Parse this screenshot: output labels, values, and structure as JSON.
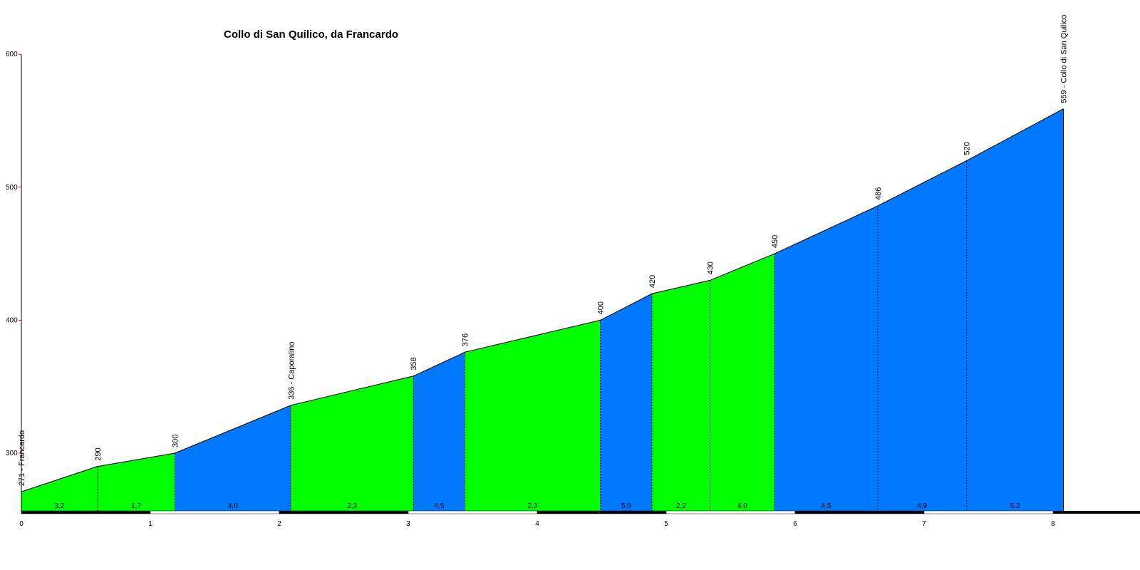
{
  "chart_data": {
    "type": "area",
    "title": "Collo di San Quilico, da Francardo",
    "xlabel": "",
    "ylabel": "",
    "xlim": [
      0,
      8.2
    ],
    "ylim": [
      256,
      600
    ],
    "x_ticks": [
      "0",
      "1",
      "2",
      "3",
      "4",
      "5",
      "6",
      "7",
      "8"
    ],
    "y_ticks": [
      "300",
      "400",
      "500",
      "600"
    ],
    "grid": false,
    "colors": {
      "easy": "#00ff00",
      "hard": "#0078ff",
      "axis": "#000000",
      "y_tick_mark": "#ff0000"
    },
    "points": [
      {
        "x": 0.0,
        "y": 271,
        "label": "271 - Francardo"
      },
      {
        "x": 0.59,
        "y": 290,
        "label": "290"
      },
      {
        "x": 1.19,
        "y": 300,
        "label": "300"
      },
      {
        "x": 2.09,
        "y": 336,
        "label": "336 - Caporalino"
      },
      {
        "x": 3.04,
        "y": 358,
        "label": "358"
      },
      {
        "x": 3.44,
        "y": 376,
        "label": "376"
      },
      {
        "x": 4.49,
        "y": 400,
        "label": "400"
      },
      {
        "x": 4.89,
        "y": 420,
        "label": "420"
      },
      {
        "x": 5.34,
        "y": 430,
        "label": "430"
      },
      {
        "x": 5.84,
        "y": 450,
        "label": "450"
      },
      {
        "x": 6.64,
        "y": 486,
        "label": "486"
      },
      {
        "x": 7.33,
        "y": 520,
        "label": "520"
      },
      {
        "x": 8.08,
        "y": 559,
        "label": "559 - Collo di San Quilico"
      }
    ],
    "segments": [
      {
        "gradient": "3,2",
        "level": "easy"
      },
      {
        "gradient": "1,7",
        "level": "easy"
      },
      {
        "gradient": "4,0",
        "level": "hard"
      },
      {
        "gradient": "2,3",
        "level": "easy"
      },
      {
        "gradient": "4,5",
        "level": "hard"
      },
      {
        "gradient": "2,3",
        "level": "easy"
      },
      {
        "gradient": "5,0",
        "level": "hard"
      },
      {
        "gradient": "2,2",
        "level": "easy"
      },
      {
        "gradient": "4,0",
        "level": "easy"
      },
      {
        "gradient": "4,5",
        "level": "hard"
      },
      {
        "gradient": "4,9",
        "level": "hard"
      },
      {
        "gradient": "5,2",
        "level": "hard"
      }
    ]
  }
}
